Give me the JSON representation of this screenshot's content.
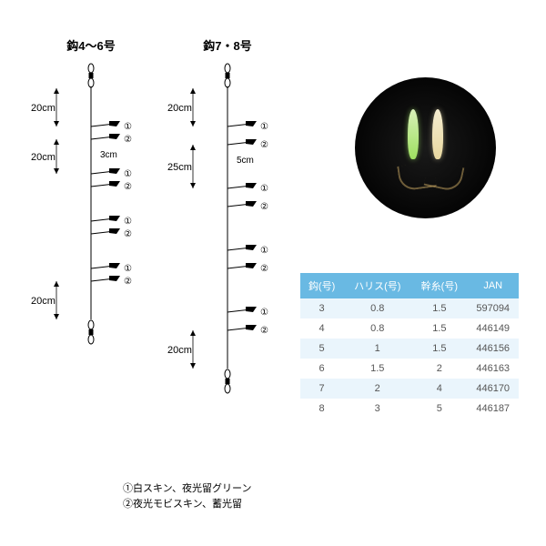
{
  "diagram": {
    "rigs": [
      {
        "title": "鈎4〜6号",
        "top_seg": "20cm",
        "branch_len": "3cm",
        "mid_seg": "20cm",
        "bot_seg": "20cm",
        "mid_span": 38
      },
      {
        "title": "鈎7・8号",
        "top_seg": "20cm",
        "branch_len": "5cm",
        "mid_seg": "25cm",
        "bot_seg": "20cm",
        "mid_span": 48
      }
    ],
    "legend": {
      "line1": "①白スキン、夜光留グリーン",
      "line2": "②夜光モビスキン、蓄光留"
    },
    "stroke": "#000000",
    "marker_labels": [
      "①",
      "②",
      "①",
      "②",
      "①",
      "②",
      "①",
      "②"
    ]
  },
  "table": {
    "header_bg": "#69b9e3",
    "row_even_bg": "#eaf5fc",
    "row_odd_bg": "#ffffff",
    "text_color": "#555555",
    "columns": [
      "鈎(号)",
      "ハリス(号)",
      "幹糸(号)",
      "JAN"
    ],
    "rows": [
      [
        "3",
        "0.8",
        "1.5",
        "597094"
      ],
      [
        "4",
        "0.8",
        "1.5",
        "446149"
      ],
      [
        "5",
        "1",
        "1.5",
        "446156"
      ],
      [
        "6",
        "1.5",
        "2",
        "446163"
      ],
      [
        "7",
        "2",
        "4",
        "446170"
      ],
      [
        "8",
        "3",
        "5",
        "446187"
      ]
    ]
  }
}
